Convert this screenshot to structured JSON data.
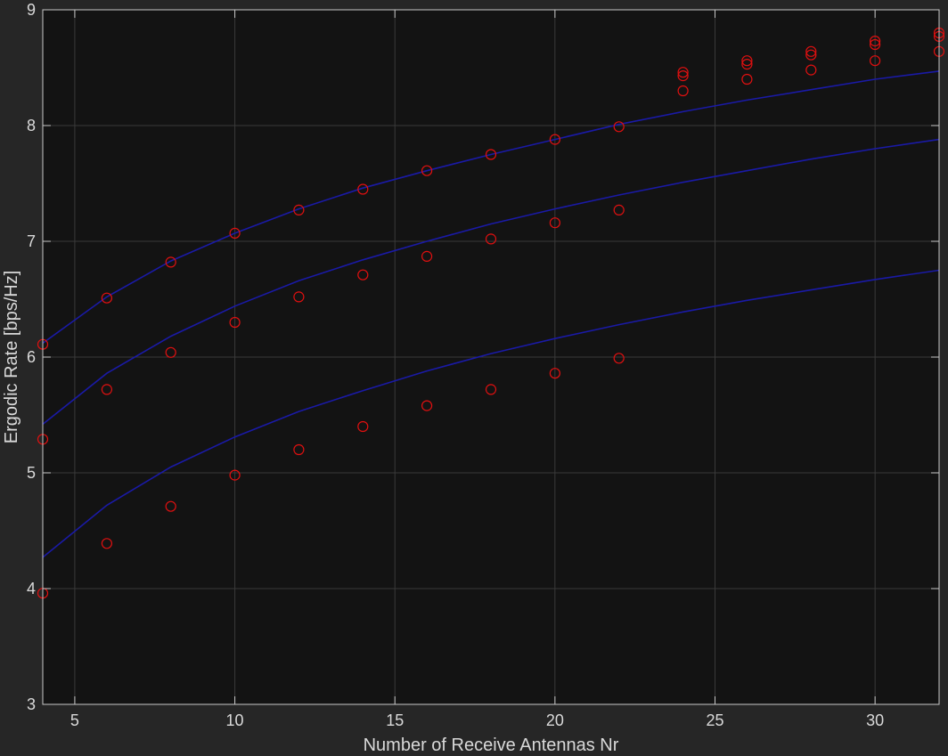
{
  "chart_data": {
    "type": "line",
    "xlabel": "Number of Receive Antennas Nr",
    "ylabel": "Ergodic Rate [bps/Hz]",
    "xlim": [
      4,
      32
    ],
    "ylim": [
      3,
      9
    ],
    "xticks": [
      5,
      10,
      15,
      20,
      25,
      30
    ],
    "yticks": [
      3,
      4,
      5,
      6,
      7,
      8,
      9
    ],
    "grid": true,
    "colors": {
      "background": "#262626",
      "plot_area": "#131313",
      "grid": "#3a3a3a",
      "axis": "#c8c8c8",
      "line": "#1a1aa6",
      "marker": "#e01010"
    },
    "line_x": [
      4,
      6,
      8,
      10,
      12,
      14,
      16,
      18,
      20,
      22,
      24,
      26,
      28,
      30,
      32
    ],
    "lines": [
      {
        "y": [
          6.12,
          6.52,
          6.83,
          7.07,
          7.28,
          7.46,
          7.61,
          7.75,
          7.88,
          8.01,
          8.12,
          8.22,
          8.31,
          8.4,
          8.47
        ]
      },
      {
        "y": [
          5.42,
          5.86,
          6.18,
          6.44,
          6.66,
          6.84,
          7.0,
          7.15,
          7.28,
          7.4,
          7.51,
          7.61,
          7.71,
          7.8,
          7.88
        ]
      },
      {
        "y": [
          4.27,
          4.72,
          5.05,
          5.31,
          5.53,
          5.71,
          5.88,
          6.03,
          6.16,
          6.28,
          6.39,
          6.49,
          6.58,
          6.67,
          6.75
        ]
      }
    ],
    "points": [
      {
        "x": [
          4,
          6,
          8,
          10,
          12,
          14,
          16,
          18,
          20,
          22,
          24,
          24,
          26,
          26,
          28,
          28,
          30,
          30,
          32,
          32
        ],
        "y": [
          6.11,
          6.51,
          6.82,
          7.07,
          7.27,
          7.45,
          7.61,
          7.75,
          7.88,
          7.99,
          8.43,
          8.46,
          8.53,
          8.56,
          8.61,
          8.64,
          8.7,
          8.73,
          8.77,
          8.8
        ]
      },
      {
        "x": [
          4,
          6,
          8,
          10,
          12,
          14,
          16,
          18,
          20,
          22,
          24,
          26,
          28,
          30,
          32
        ],
        "y": [
          5.29,
          5.72,
          6.04,
          6.3,
          6.52,
          6.71,
          6.87,
          7.02,
          7.16,
          7.27,
          8.3,
          8.4,
          8.48,
          8.56,
          8.64
        ]
      },
      {
        "x": [
          4,
          6,
          8,
          10,
          12,
          14,
          16,
          18,
          20,
          22
        ],
        "y": [
          3.96,
          4.39,
          4.71,
          4.98,
          5.2,
          5.4,
          5.58,
          5.72,
          5.86,
          5.99
        ]
      }
    ]
  }
}
